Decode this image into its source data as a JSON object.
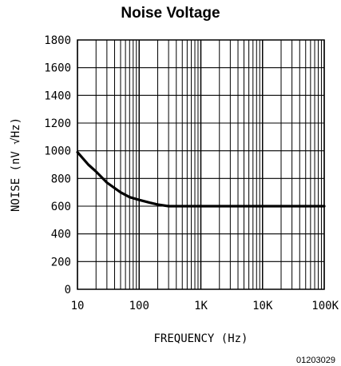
{
  "chart_data": {
    "type": "line",
    "title": "Noise Voltage",
    "xlabel": "FREQUENCY (Hz)",
    "ylabel": "NOISE (nV √Hz)",
    "xscale": "log",
    "xlim": [
      10,
      100000
    ],
    "ylim": [
      0,
      1800
    ],
    "x_ticks": [
      10,
      100,
      1000,
      10000,
      100000
    ],
    "x_tick_labels": [
      "10",
      "100",
      "1K",
      "10K",
      "100K"
    ],
    "y_ticks": [
      0,
      200,
      400,
      600,
      800,
      1000,
      1200,
      1400,
      1600,
      1800
    ],
    "y_tick_labels": [
      "0",
      "200",
      "400",
      "600",
      "800",
      "1000",
      "1200",
      "1400",
      "1600",
      "1800"
    ],
    "grid": true,
    "series": [
      {
        "x": [
          10,
          15,
          20,
          30,
          50,
          70,
          100,
          150,
          200,
          300,
          1000,
          10000,
          100000
        ],
        "values": [
          990,
          900,
          850,
          770,
          700,
          665,
          645,
          625,
          612,
          600,
          600,
          600,
          600
        ]
      }
    ],
    "footnote": "01203029",
    "line_color": "#000000"
  }
}
